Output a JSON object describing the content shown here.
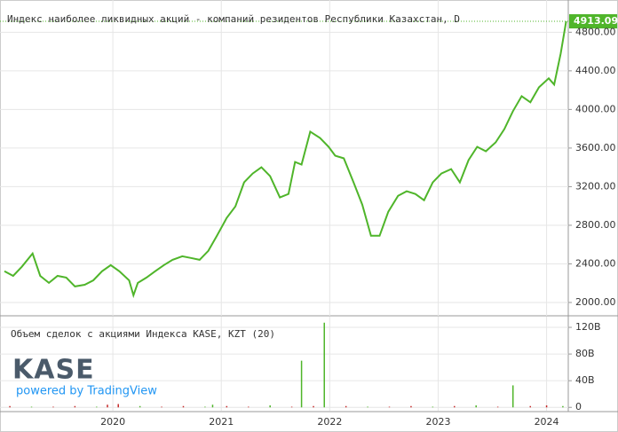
{
  "chart_data": [
    {
      "type": "line",
      "title": "Индекс наиболее ликвидных акций - компаний резидентов Республики Казахстан, D",
      "color": "#4fb52a",
      "x": [
        2019.0,
        2019.08,
        2019.16,
        2019.26,
        2019.33,
        2019.41,
        2019.49,
        2019.57,
        2019.65,
        2019.74,
        2019.82,
        2019.9,
        2019.98,
        2020.06,
        2020.15,
        2020.19,
        2020.23,
        2020.31,
        2020.39,
        2020.47,
        2020.55,
        2020.64,
        2020.72,
        2020.8,
        2020.88,
        2020.96,
        2021.05,
        2021.13,
        2021.21,
        2021.29,
        2021.37,
        2021.45,
        2021.54,
        2021.62,
        2021.68,
        2021.74,
        2021.82,
        2021.91,
        2021.99,
        2022.05,
        2022.13,
        2022.22,
        2022.3,
        2022.38,
        2022.46,
        2022.54,
        2022.63,
        2022.71,
        2022.79,
        2022.87,
        2022.95,
        2023.03,
        2023.12,
        2023.2,
        2023.28,
        2023.36,
        2023.44,
        2023.53,
        2023.61,
        2023.69,
        2023.77,
        2023.85,
        2023.93,
        2024.02,
        2024.07,
        2024.13,
        2024.18
      ],
      "values": [
        2323,
        2276,
        2369,
        2507,
        2276,
        2203,
        2276,
        2258,
        2166,
        2184,
        2230,
        2323,
        2387,
        2323,
        2230,
        2074,
        2203,
        2258,
        2323,
        2387,
        2442,
        2479,
        2461,
        2442,
        2535,
        2691,
        2876,
        2995,
        3244,
        3336,
        3401,
        3309,
        3088,
        3124,
        3456,
        3429,
        3770,
        3705,
        3613,
        3521,
        3493,
        3244,
        3014,
        2691,
        2691,
        2940,
        3106,
        3152,
        3124,
        3060,
        3244,
        3336,
        3382,
        3244,
        3475,
        3613,
        3567,
        3659,
        3797,
        3982,
        4138,
        4074,
        4230,
        4322,
        4258,
        4581,
        4913.09
      ],
      "xlim": [
        2019.0,
        2024.2
      ],
      "ylim": [
        1862,
        5134
      ],
      "yticks": [
        {
          "value": 2000,
          "label": "2000.00"
        },
        {
          "value": 2400,
          "label": "2400.00"
        },
        {
          "value": 2800,
          "label": "2800.00"
        },
        {
          "value": 3200,
          "label": "3200.00"
        },
        {
          "value": 3600,
          "label": "3600.00"
        },
        {
          "value": 4000,
          "label": "4000.00"
        },
        {
          "value": 4400,
          "label": "4400.00"
        },
        {
          "value": 4800,
          "label": "4800.00"
        }
      ],
      "grid": true
    },
    {
      "type": "bar",
      "title": "Объем сделок с акциями Индекса KASE, KZT (20)",
      "x": [
        2019.05,
        2019.25,
        2019.45,
        2019.65,
        2019.85,
        2019.95,
        2020.05,
        2020.25,
        2020.45,
        2020.65,
        2020.85,
        2020.92,
        2021.05,
        2021.25,
        2021.45,
        2021.65,
        2021.74,
        2021.85,
        2021.95,
        2022.15,
        2022.35,
        2022.55,
        2022.75,
        2022.95,
        2023.15,
        2023.35,
        2023.55,
        2023.69,
        2023.85,
        2024.0,
        2024.15
      ],
      "values": [
        2,
        1,
        1,
        2,
        1,
        4,
        5,
        2,
        1,
        2,
        1,
        4,
        2,
        1,
        3,
        1,
        70,
        2,
        127,
        2,
        1,
        1,
        2,
        1,
        2,
        3,
        1,
        33,
        2,
        3,
        2
      ],
      "colors": [
        "#c62828",
        "#4fb52a",
        "#c62828",
        "#c62828",
        "#4fb52a",
        "#c62828",
        "#c62828",
        "#4fb52a",
        "#c62828",
        "#c62828",
        "#4fb52a",
        "#4fb52a",
        "#c62828",
        "#c62828",
        "#4fb52a",
        "#c62828",
        "#4fb52a",
        "#c62828",
        "#4fb52a",
        "#c62828",
        "#4fb52a",
        "#c62828",
        "#c62828",
        "#4fb52a",
        "#c62828",
        "#4fb52a",
        "#c62828",
        "#4fb52a",
        "#c62828",
        "#c62828",
        "#4fb52a"
      ],
      "xlim": [
        2019.0,
        2024.2
      ],
      "xticks": [
        2020,
        2021,
        2022,
        2023,
        2024
      ],
      "ylim": [
        -5,
        136
      ],
      "yticks": [
        0,
        {
          "value": 40,
          "label": "40B"
        },
        {
          "value": 80,
          "label": "80B"
        },
        {
          "value": 120,
          "label": "120B"
        }
      ],
      "grid": true
    }
  ],
  "branding": {
    "logo": "KASE",
    "tagline": "powered by TradingView"
  }
}
